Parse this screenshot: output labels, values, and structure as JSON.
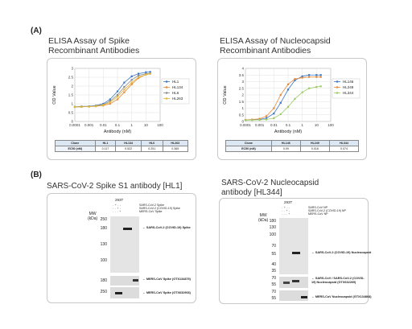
{
  "panelA": {
    "label": "(A)"
  },
  "panelB": {
    "label": "(B)"
  },
  "chart_data": [
    {
      "type": "line",
      "title": "ELISA Assay of Spike Recombinant Antibodies",
      "title_lines": [
        "ELISA Assay of Spike",
        "Recombinant Antibodies"
      ],
      "xlabel": "Antibody (nM)",
      "ylabel": "OD Value",
      "xscale": "log",
      "x": [
        0.0001,
        0.0003,
        0.001,
        0.003,
        0.01,
        0.03,
        0.1,
        0.3,
        1,
        3,
        10,
        20
      ],
      "xticks": [
        "0.0001",
        "0.001",
        "0.01",
        "0.1",
        "1",
        "10",
        "100"
      ],
      "yticks": [
        "0",
        "0.5",
        "1",
        "1.5",
        "2",
        "2.5",
        "3"
      ],
      "ylim": [
        0,
        3
      ],
      "grid": true,
      "legend": "right",
      "series": [
        {
          "name": "HL1",
          "color": "#3a78c9",
          "values": [
            0.83,
            0.85,
            0.86,
            0.9,
            1.0,
            1.25,
            1.7,
            2.2,
            2.55,
            2.7,
            2.78,
            2.8
          ]
        },
        {
          "name": "HL134",
          "color": "#e88a3b",
          "values": [
            0.82,
            0.83,
            0.84,
            0.86,
            0.9,
            1.0,
            1.25,
            1.65,
            2.1,
            2.45,
            2.65,
            2.7
          ]
        },
        {
          "name": "HL6",
          "color": "#8a8a8a",
          "values": [
            0.82,
            0.83,
            0.85,
            0.88,
            0.95,
            1.15,
            1.5,
            1.95,
            2.35,
            2.6,
            2.7,
            2.72
          ]
        },
        {
          "name": "HL263",
          "color": "#e0b83a",
          "values": [
            0.82,
            0.83,
            0.84,
            0.87,
            0.93,
            1.08,
            1.4,
            1.8,
            2.2,
            2.5,
            2.65,
            2.7
          ]
        }
      ],
      "table": {
        "row_headers": [
          "Clone",
          "EC50 (nM)"
        ],
        "columns": [
          "HL1",
          "HL134",
          "HL6",
          "HL263"
        ],
        "values": [
          "0.117",
          "0.522",
          "0.251",
          "0.365"
        ]
      }
    },
    {
      "type": "line",
      "title": "ELISA Assay of Nucleocapsid Recombinant Antibodies",
      "title_lines": [
        "ELISA Assay of Nucleocapsid",
        "Recombinant Antibodies"
      ],
      "xlabel": "Antibody (nM)",
      "ylabel": "OD Value",
      "xscale": "log",
      "x": [
        0.0001,
        0.0003,
        0.001,
        0.003,
        0.01,
        0.03,
        0.1,
        0.3,
        1,
        3,
        10,
        20
      ],
      "xticks": [
        "0.0001",
        "0.001",
        "0.01",
        "0.1",
        "1",
        "10",
        "100"
      ],
      "yticks": [
        "0",
        "0.5",
        "1",
        "1.5",
        "2",
        "2.5",
        "3",
        "3.5",
        "4"
      ],
      "ylim": [
        0,
        4
      ],
      "grid": true,
      "legend": "right",
      "series": [
        {
          "name": "HL146",
          "color": "#3a78c9",
          "values": [
            0.1,
            0.12,
            0.15,
            0.25,
            0.6,
            1.4,
            2.4,
            3.1,
            3.4,
            3.5,
            3.5,
            3.5
          ]
        },
        {
          "name": "HL249",
          "color": "#e88a3b",
          "values": [
            0.12,
            0.15,
            0.2,
            0.4,
            1.0,
            2.0,
            2.8,
            3.2,
            3.3,
            3.35,
            3.35,
            3.35
          ]
        },
        {
          "name": "HL344",
          "color": "#9ccc65",
          "values": [
            0.1,
            0.11,
            0.12,
            0.15,
            0.25,
            0.55,
            1.1,
            1.7,
            2.2,
            2.5,
            2.6,
            2.65
          ]
        }
      ],
      "table": {
        "row_headers": [
          "Clone",
          "EC50 (nM)"
        ],
        "columns": [
          "HL146",
          "HL249",
          "HL344"
        ],
        "values": [
          "0.09",
          "0.016",
          "0.074"
        ]
      }
    }
  ],
  "blots": [
    {
      "title_lines": [
        "SARS-CoV-2 Spike S1 antibody [HL1]"
      ],
      "cell_line": "293T",
      "mw_label": [
        "MW",
        "(kDa)"
      ],
      "lanes_legend": [
        "SARS-CoV-2 Spike",
        "SARS-CoV-2 (COVID-19) Spike",
        "MERS-CoV Spike"
      ],
      "mw_main": [
        "250",
        "180",
        "130",
        "100"
      ],
      "mw_strip1": [
        "180"
      ],
      "mw_strip2": [
        "250"
      ],
      "annotations": [
        "SARS-CoV-2 (COVID-19) Spike",
        "MERS-CoV Spike (GTX134879)",
        "MERS-CoV Spike (GTX632903)"
      ]
    },
    {
      "title_lines": [
        "SARS-CoV-2 Nucleocapsid",
        "antibody [HL344]"
      ],
      "cell_line": "293T",
      "mw_label": [
        "MW",
        "(kDa)"
      ],
      "lanes_legend": [
        "SARS-CoV NP",
        "SARS-CoV-2 (COVID-19) NP",
        "MERS-CoV NP"
      ],
      "mw_main": [
        "180",
        "130",
        "100",
        "70",
        "55",
        "40",
        "35"
      ],
      "mw_strip1": [
        "70",
        "55"
      ],
      "mw_strip2": [
        "70",
        "55"
      ],
      "annotations": [
        "SARS-CoV-2 (COVID-19) Nucleocapsid",
        "SARS-CoV / SARS-CoV-2 (COVID-19) Nucleocapsid (GTX632269)",
        "MERS-CoV Nucleocapsid (GTX134868)"
      ]
    }
  ]
}
